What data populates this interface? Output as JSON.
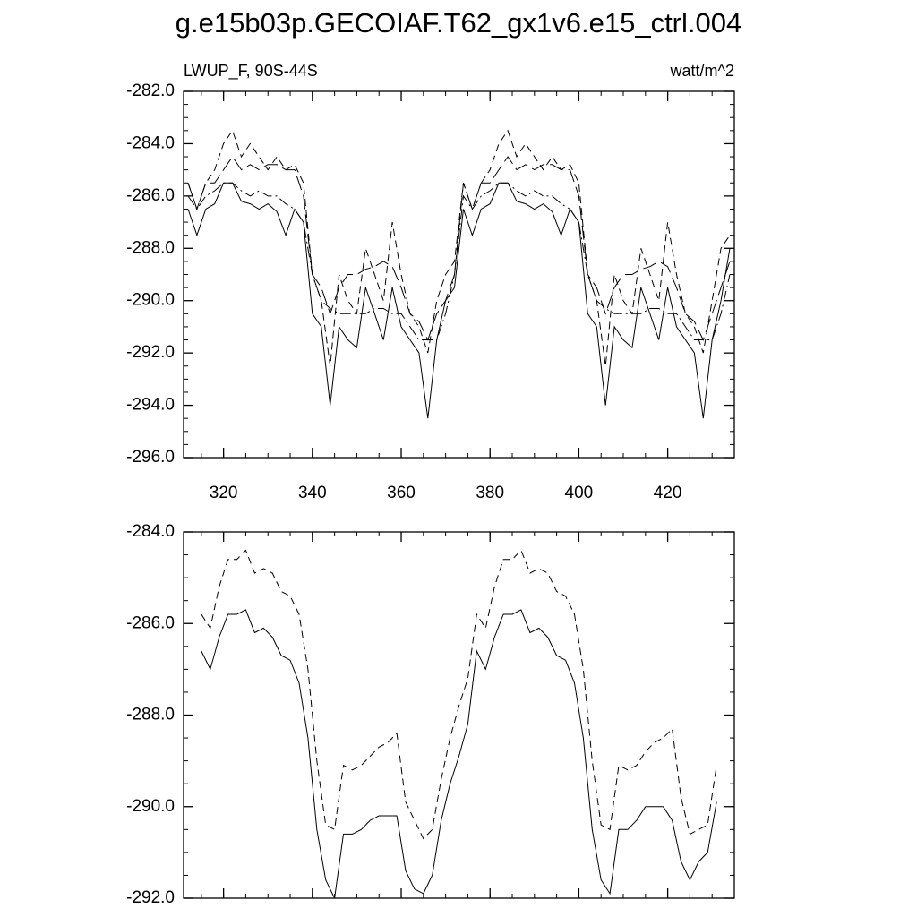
{
  "title": "g.e15b03p.GECOIAF.T62_gx1v6.e15_ctrl.004",
  "chart_data": [
    {
      "type": "line",
      "left_string": "LWUP_F, 90S-44S",
      "right_string": "watt/m^2",
      "x": [
        312,
        314,
        316,
        318,
        320,
        322,
        324,
        326,
        328,
        330,
        332,
        334,
        336,
        338,
        340,
        342,
        344,
        346,
        348,
        350,
        352,
        354,
        356,
        358,
        360,
        362,
        364,
        366,
        368,
        370,
        372,
        374,
        376,
        378,
        380,
        382,
        384,
        386,
        388,
        390,
        392,
        394,
        396,
        398,
        400,
        402,
        404,
        406,
        408,
        410,
        412,
        414,
        416,
        418,
        420,
        422,
        424,
        426,
        428,
        430,
        432,
        434
      ],
      "xlim": [
        311,
        435
      ],
      "xticks": [
        320,
        340,
        360,
        380,
        400,
        420
      ],
      "ylim": [
        -296,
        -282
      ],
      "yticks": [
        {
          "value": -282,
          "label": "-282.0"
        },
        {
          "value": -284,
          "label": "-284.0"
        },
        {
          "value": -286,
          "label": "-286.0"
        },
        {
          "value": -288,
          "label": "-288.0"
        },
        {
          "value": -290,
          "label": "-290.0"
        },
        {
          "value": -292,
          "label": "-292.0"
        },
        {
          "value": -294,
          "label": "-294.0"
        },
        {
          "value": -296,
          "label": "-296.0"
        }
      ],
      "show_xtick_labels": true,
      "series": [
        {
          "color": "#000000",
          "style": "solid",
          "values": [
            -286.5,
            -287.5,
            -286.5,
            -286.3,
            -285.5,
            -285.5,
            -286.2,
            -286.3,
            -286.5,
            -286.3,
            -286.6,
            -287.5,
            -286.5,
            -287,
            -290.5,
            -291,
            -294,
            -291,
            -291.5,
            -291.8,
            -289.5,
            -290.5,
            -291.5,
            -289.5,
            -291,
            -291.5,
            -292,
            -294.5,
            -291.5,
            -290,
            -289.5,
            -286.5,
            -287.5,
            -286.5,
            -286.3,
            -285.5,
            -285.5,
            -286.2,
            -286.3,
            -286.5,
            -286.3,
            -286.6,
            -287.5,
            -286.5,
            -287,
            -290.5,
            -291,
            -294,
            -291,
            -291.5,
            -291.8,
            -289.5,
            -290.5,
            -291.5,
            -289.5,
            -291,
            -291.5,
            -292,
            -294.5,
            -291.5,
            -290,
            -288
          ]
        },
        {
          "color": "#000000",
          "style": "dashed",
          "values": [
            -285.5,
            -286.5,
            -285.5,
            -285,
            -284,
            -283.5,
            -284.5,
            -284,
            -284.5,
            -285,
            -284.5,
            -285,
            -284.8,
            -285.5,
            -289,
            -290,
            -292.5,
            -289,
            -290,
            -290.5,
            -288,
            -289,
            -290,
            -287,
            -289,
            -290.5,
            -291,
            -292,
            -290,
            -289,
            -288.5,
            -285.5,
            -286.5,
            -285.5,
            -285,
            -284,
            -283.5,
            -284.5,
            -284,
            -284.5,
            -285,
            -284.5,
            -285,
            -284.8,
            -285.5,
            -289,
            -290,
            -292.5,
            -289,
            -290,
            -290.5,
            -288,
            -289,
            -290,
            -287,
            -289,
            -290.5,
            -291,
            -292,
            -290,
            -288,
            -287.5
          ]
        },
        {
          "color": "#000000",
          "style": "dashdot",
          "values": [
            -286,
            -286.5,
            -286,
            -285.8,
            -285.5,
            -285.5,
            -285.8,
            -286,
            -285.8,
            -286,
            -286,
            -286.3,
            -286.5,
            -287,
            -289,
            -290,
            -290.3,
            -290.5,
            -290.5,
            -290.5,
            -290.5,
            -290.3,
            -290.3,
            -290.5,
            -290.5,
            -291,
            -291.5,
            -291.5,
            -291.5,
            -290.5,
            -289,
            -286,
            -286.5,
            -286,
            -285.8,
            -285.5,
            -285.5,
            -285.8,
            -286,
            -285.8,
            -286,
            -286,
            -286.3,
            -286.5,
            -287,
            -289,
            -290,
            -290.3,
            -290.5,
            -290.5,
            -290.5,
            -290.5,
            -290.3,
            -290.3,
            -290.5,
            -290.5,
            -291,
            -291.5,
            -291.5,
            -291.5,
            -290.5,
            -289
          ]
        },
        {
          "color": "#000000",
          "style": "longdash",
          "values": [
            -285.5,
            -286.5,
            -285.5,
            -285.5,
            -285,
            -284.5,
            -285,
            -284.8,
            -285,
            -284.8,
            -284.8,
            -285,
            -285,
            -286,
            -289,
            -289.5,
            -290.5,
            -289.5,
            -289,
            -289,
            -288.8,
            -288.7,
            -288.5,
            -288.7,
            -289.5,
            -290.5,
            -290.8,
            -291.5,
            -290.5,
            -290,
            -289,
            -285.5,
            -286.5,
            -285.5,
            -285.5,
            -285,
            -284.5,
            -285,
            -284.8,
            -285,
            -284.8,
            -284.8,
            -285,
            -285,
            -286,
            -289,
            -289.5,
            -290.5,
            -289.5,
            -289,
            -289,
            -288.8,
            -288.7,
            -288.5,
            -288.7,
            -289.5,
            -290.5,
            -290.8,
            -291.5,
            -290.5,
            -289.5,
            -288.5
          ]
        }
      ]
    },
    {
      "type": "line",
      "x": [
        315,
        317,
        319,
        321,
        323,
        325,
        327,
        329,
        331,
        333,
        335,
        337,
        339,
        341,
        343,
        345,
        347,
        349,
        351,
        353,
        355,
        357,
        359,
        361,
        363,
        365,
        367,
        369,
        371,
        373,
        375,
        377,
        379,
        381,
        383,
        385,
        387,
        389,
        391,
        393,
        395,
        397,
        399,
        401,
        403,
        405,
        407,
        409,
        411,
        413,
        415,
        417,
        419,
        421,
        423,
        425,
        427,
        429,
        431
      ],
      "xlim": [
        311,
        435
      ],
      "xticks": [
        320,
        340,
        360,
        380,
        400,
        420
      ],
      "ylim": [
        -292,
        -284
      ],
      "yticks": [
        {
          "value": -284,
          "label": "-284.0"
        },
        {
          "value": -286,
          "label": "-286.0"
        },
        {
          "value": -288,
          "label": "-288.0"
        },
        {
          "value": -290,
          "label": "-290.0"
        },
        {
          "value": -292,
          "label": "-292.0"
        }
      ],
      "show_xtick_labels": false,
      "series": [
        {
          "color": "#000000",
          "style": "solid",
          "values": [
            -286.6,
            -287,
            -286.3,
            -285.8,
            -285.8,
            -285.7,
            -286.2,
            -286.1,
            -286.3,
            -286.7,
            -286.8,
            -287.3,
            -288.5,
            -290.5,
            -291.6,
            -292,
            -290.6,
            -290.6,
            -290.5,
            -290.3,
            -290.2,
            -290.2,
            -290.2,
            -291.4,
            -291.8,
            -291.9,
            -291.5,
            -290.3,
            -289.5,
            -288.9,
            -288.2,
            -286.6,
            -287,
            -286.3,
            -285.8,
            -285.8,
            -285.7,
            -286.2,
            -286.1,
            -286.3,
            -286.7,
            -286.8,
            -287.3,
            -288.5,
            -290.5,
            -291.6,
            -291.9,
            -290.5,
            -290.5,
            -290.3,
            -290,
            -290,
            -290,
            -290.3,
            -291.2,
            -291.6,
            -291.2,
            -291,
            -289.9
          ]
        },
        {
          "color": "#000000",
          "style": "dashed",
          "values": [
            -285.8,
            -286.1,
            -285.2,
            -284.6,
            -284.6,
            -284.4,
            -284.9,
            -284.8,
            -284.9,
            -285.3,
            -285.4,
            -285.8,
            -287,
            -289,
            -290.4,
            -290.5,
            -289.1,
            -289.2,
            -289.1,
            -288.9,
            -288.7,
            -288.6,
            -288.4,
            -289.9,
            -290.3,
            -290.7,
            -290.5,
            -289.4,
            -288.5,
            -287.8,
            -287.2,
            -285.8,
            -286.1,
            -285.2,
            -284.6,
            -284.6,
            -284.4,
            -284.9,
            -284.8,
            -284.9,
            -285.3,
            -285.4,
            -285.8,
            -287,
            -289,
            -290.4,
            -290.5,
            -289.1,
            -289.2,
            -289.1,
            -288.8,
            -288.6,
            -288.5,
            -288.3,
            -289.8,
            -290.6,
            -290.5,
            -290.4,
            -289.1
          ]
        }
      ]
    }
  ]
}
